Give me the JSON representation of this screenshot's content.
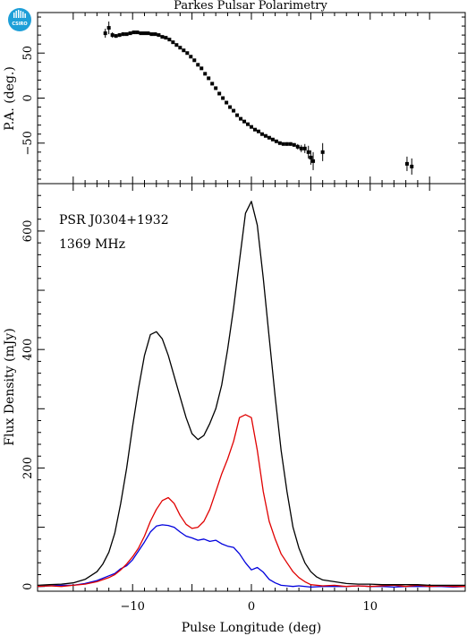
{
  "title": "Parkes Pulsar Polarimetry",
  "logo": {
    "text": "CSIRO",
    "color": "#1e9fd8"
  },
  "colors": {
    "total": "#000000",
    "linear": "#e00000",
    "circular": "#0000dd"
  },
  "chart_data": [
    {
      "type": "scatter",
      "panel": "top",
      "ylabel": "P.A. (deg.)",
      "xlim": [
        -18,
        18
      ],
      "ylim": [
        -95,
        95
      ],
      "xticks": [
        -10,
        0,
        10
      ],
      "yticks": [
        50,
        0,
        -50
      ],
      "ytick_labels": [
        "50",
        "0",
        "−50"
      ],
      "points": [
        {
          "x": -12.3,
          "y": 72,
          "err": 5
        },
        {
          "x": -12.0,
          "y": 78,
          "err": 7
        },
        {
          "x": -11.7,
          "y": 70,
          "err": 3
        },
        {
          "x": -11.4,
          "y": 69,
          "err": 2
        },
        {
          "x": -11.1,
          "y": 70,
          "err": 2
        },
        {
          "x": -10.8,
          "y": 71,
          "err": 2
        },
        {
          "x": -10.5,
          "y": 71,
          "err": 1.5
        },
        {
          "x": -10.2,
          "y": 72,
          "err": 1.5
        },
        {
          "x": -9.9,
          "y": 73,
          "err": 1.5
        },
        {
          "x": -9.6,
          "y": 73,
          "err": 1.2
        },
        {
          "x": -9.3,
          "y": 72,
          "err": 1.2
        },
        {
          "x": -9.0,
          "y": 72,
          "err": 1.2
        },
        {
          "x": -8.7,
          "y": 72,
          "err": 1
        },
        {
          "x": -8.4,
          "y": 71,
          "err": 1
        },
        {
          "x": -8.1,
          "y": 71,
          "err": 1
        },
        {
          "x": -7.8,
          "y": 70,
          "err": 1
        },
        {
          "x": -7.5,
          "y": 68,
          "err": 1
        },
        {
          "x": -7.2,
          "y": 67,
          "err": 1
        },
        {
          "x": -6.9,
          "y": 65,
          "err": 1
        },
        {
          "x": -6.6,
          "y": 62,
          "err": 1
        },
        {
          "x": -6.3,
          "y": 59,
          "err": 1
        },
        {
          "x": -6.0,
          "y": 56,
          "err": 1
        },
        {
          "x": -5.7,
          "y": 53,
          "err": 1
        },
        {
          "x": -5.4,
          "y": 50,
          "err": 1
        },
        {
          "x": -5.1,
          "y": 46,
          "err": 1
        },
        {
          "x": -4.8,
          "y": 42,
          "err": 1
        },
        {
          "x": -4.5,
          "y": 37,
          "err": 1
        },
        {
          "x": -4.2,
          "y": 33,
          "err": 1
        },
        {
          "x": -3.9,
          "y": 27,
          "err": 1
        },
        {
          "x": -3.6,
          "y": 22,
          "err": 1
        },
        {
          "x": -3.3,
          "y": 16,
          "err": 1
        },
        {
          "x": -3.0,
          "y": 11,
          "err": 1
        },
        {
          "x": -2.7,
          "y": 5,
          "err": 1
        },
        {
          "x": -2.4,
          "y": 0,
          "err": 1
        },
        {
          "x": -2.1,
          "y": -5,
          "err": 1
        },
        {
          "x": -1.8,
          "y": -10,
          "err": 1
        },
        {
          "x": -1.5,
          "y": -14,
          "err": 1
        },
        {
          "x": -1.2,
          "y": -19,
          "err": 1
        },
        {
          "x": -0.9,
          "y": -23,
          "err": 1
        },
        {
          "x": -0.6,
          "y": -26,
          "err": 1
        },
        {
          "x": -0.3,
          "y": -29,
          "err": 1
        },
        {
          "x": 0.0,
          "y": -32,
          "err": 1
        },
        {
          "x": 0.3,
          "y": -35,
          "err": 1
        },
        {
          "x": 0.6,
          "y": -37,
          "err": 1
        },
        {
          "x": 0.9,
          "y": -40,
          "err": 1
        },
        {
          "x": 1.2,
          "y": -42,
          "err": 1
        },
        {
          "x": 1.5,
          "y": -44,
          "err": 1
        },
        {
          "x": 1.8,
          "y": -46,
          "err": 1
        },
        {
          "x": 2.1,
          "y": -48,
          "err": 1
        },
        {
          "x": 2.4,
          "y": -50,
          "err": 1.5
        },
        {
          "x": 2.7,
          "y": -51,
          "err": 1.5
        },
        {
          "x": 3.0,
          "y": -51,
          "err": 2
        },
        {
          "x": 3.3,
          "y": -51,
          "err": 2
        },
        {
          "x": 3.6,
          "y": -52,
          "err": 2
        },
        {
          "x": 3.9,
          "y": -54,
          "err": 3
        },
        {
          "x": 4.2,
          "y": -56,
          "err": 4
        },
        {
          "x": 4.5,
          "y": -56,
          "err": 5
        },
        {
          "x": 4.8,
          "y": -60,
          "err": 7
        },
        {
          "x": 5.0,
          "y": -66,
          "err": 8
        },
        {
          "x": 5.2,
          "y": -70,
          "err": 10
        },
        {
          "x": 6.0,
          "y": -60,
          "err": 10
        },
        {
          "x": 13.1,
          "y": -73,
          "err": 8
        },
        {
          "x": 13.5,
          "y": -76,
          "err": 9
        }
      ]
    },
    {
      "type": "line",
      "panel": "bottom",
      "annotation_name": "PSR J0304+1932",
      "annotation_freq": "1369 MHz",
      "xlabel": "Pulse Longitude (deg)",
      "ylabel": "Flux Density (mJy)",
      "xlim": [
        -18,
        18
      ],
      "ylim": [
        -8,
        680
      ],
      "xticks": [
        -10,
        0,
        10
      ],
      "xtick_labels": [
        "−10",
        "0",
        "10"
      ],
      "yticks": [
        0,
        200,
        400,
        600
      ],
      "series": [
        {
          "key": "total",
          "x": [
            -18,
            -17,
            -16,
            -15,
            -14,
            -13,
            -12.5,
            -12,
            -11.5,
            -11,
            -10.5,
            -10,
            -9.5,
            -9,
            -8.5,
            -8,
            -7.5,
            -7,
            -6.5,
            -6,
            -5.5,
            -5,
            -4.5,
            -4,
            -3.5,
            -3,
            -2.5,
            -2,
            -1.5,
            -1,
            -0.5,
            0,
            0.5,
            1,
            1.5,
            2,
            2.5,
            3,
            3.5,
            4,
            4.5,
            5,
            5.5,
            6,
            7,
            8,
            9,
            10,
            11,
            12,
            13,
            14,
            15,
            16,
            17,
            18
          ],
          "y": [
            2,
            3,
            4,
            6,
            12,
            25,
            38,
            58,
            90,
            140,
            200,
            270,
            335,
            390,
            425,
            430,
            418,
            390,
            355,
            320,
            285,
            258,
            248,
            255,
            275,
            300,
            340,
            400,
            470,
            550,
            630,
            650,
            610,
            520,
            420,
            320,
            230,
            160,
            100,
            65,
            40,
            25,
            16,
            11,
            8,
            5,
            4,
            4,
            3,
            3,
            3,
            3,
            2,
            2,
            2,
            2
          ]
        },
        {
          "key": "linear",
          "x": [
            -18,
            -17,
            -16,
            -15,
            -14,
            -13,
            -12,
            -11.5,
            -11,
            -10.5,
            -10,
            -9.5,
            -9,
            -8.5,
            -8,
            -7.5,
            -7,
            -6.5,
            -6,
            -5.5,
            -5,
            -4.5,
            -4,
            -3.5,
            -3,
            -2.5,
            -2,
            -1.5,
            -1,
            -0.5,
            0,
            0.5,
            1,
            1.5,
            2,
            2.5,
            3,
            3.5,
            4,
            4.5,
            5,
            6,
            7,
            8,
            9,
            10,
            11,
            12,
            13,
            14,
            15,
            16,
            17,
            18
          ],
          "y": [
            0,
            1,
            0,
            2,
            4,
            8,
            15,
            20,
            28,
            38,
            50,
            65,
            85,
            110,
            130,
            145,
            150,
            140,
            120,
            105,
            98,
            100,
            110,
            130,
            160,
            190,
            215,
            245,
            285,
            290,
            285,
            230,
            160,
            110,
            80,
            55,
            40,
            25,
            15,
            8,
            3,
            1,
            2,
            0,
            1,
            0,
            1,
            2,
            0,
            2,
            0,
            1,
            0,
            0
          ]
        },
        {
          "key": "circular",
          "x": [
            -18,
            -17,
            -16,
            -15,
            -14,
            -13,
            -12,
            -11.5,
            -11,
            -10.5,
            -10,
            -9.5,
            -9,
            -8.5,
            -8,
            -7.5,
            -7,
            -6.5,
            -6,
            -5.5,
            -5,
            -4.5,
            -4,
            -3.5,
            -3,
            -2.5,
            -2,
            -1.5,
            -1,
            -0.5,
            0,
            0.5,
            1,
            1.5,
            2,
            2.5,
            3,
            3.5,
            4,
            5,
            6,
            7,
            8,
            9,
            10,
            11,
            12,
            13,
            14,
            15,
            16,
            17,
            18
          ],
          "y": [
            0,
            1,
            2,
            2,
            5,
            10,
            18,
            22,
            30,
            35,
            45,
            60,
            75,
            92,
            102,
            104,
            103,
            100,
            92,
            85,
            82,
            78,
            80,
            76,
            78,
            72,
            68,
            66,
            55,
            40,
            28,
            32,
            24,
            12,
            6,
            2,
            1,
            0,
            1,
            -1,
            0,
            0,
            0,
            1,
            0,
            0,
            -1,
            0,
            0,
            0,
            0,
            -1,
            0
          ]
        }
      ]
    }
  ]
}
